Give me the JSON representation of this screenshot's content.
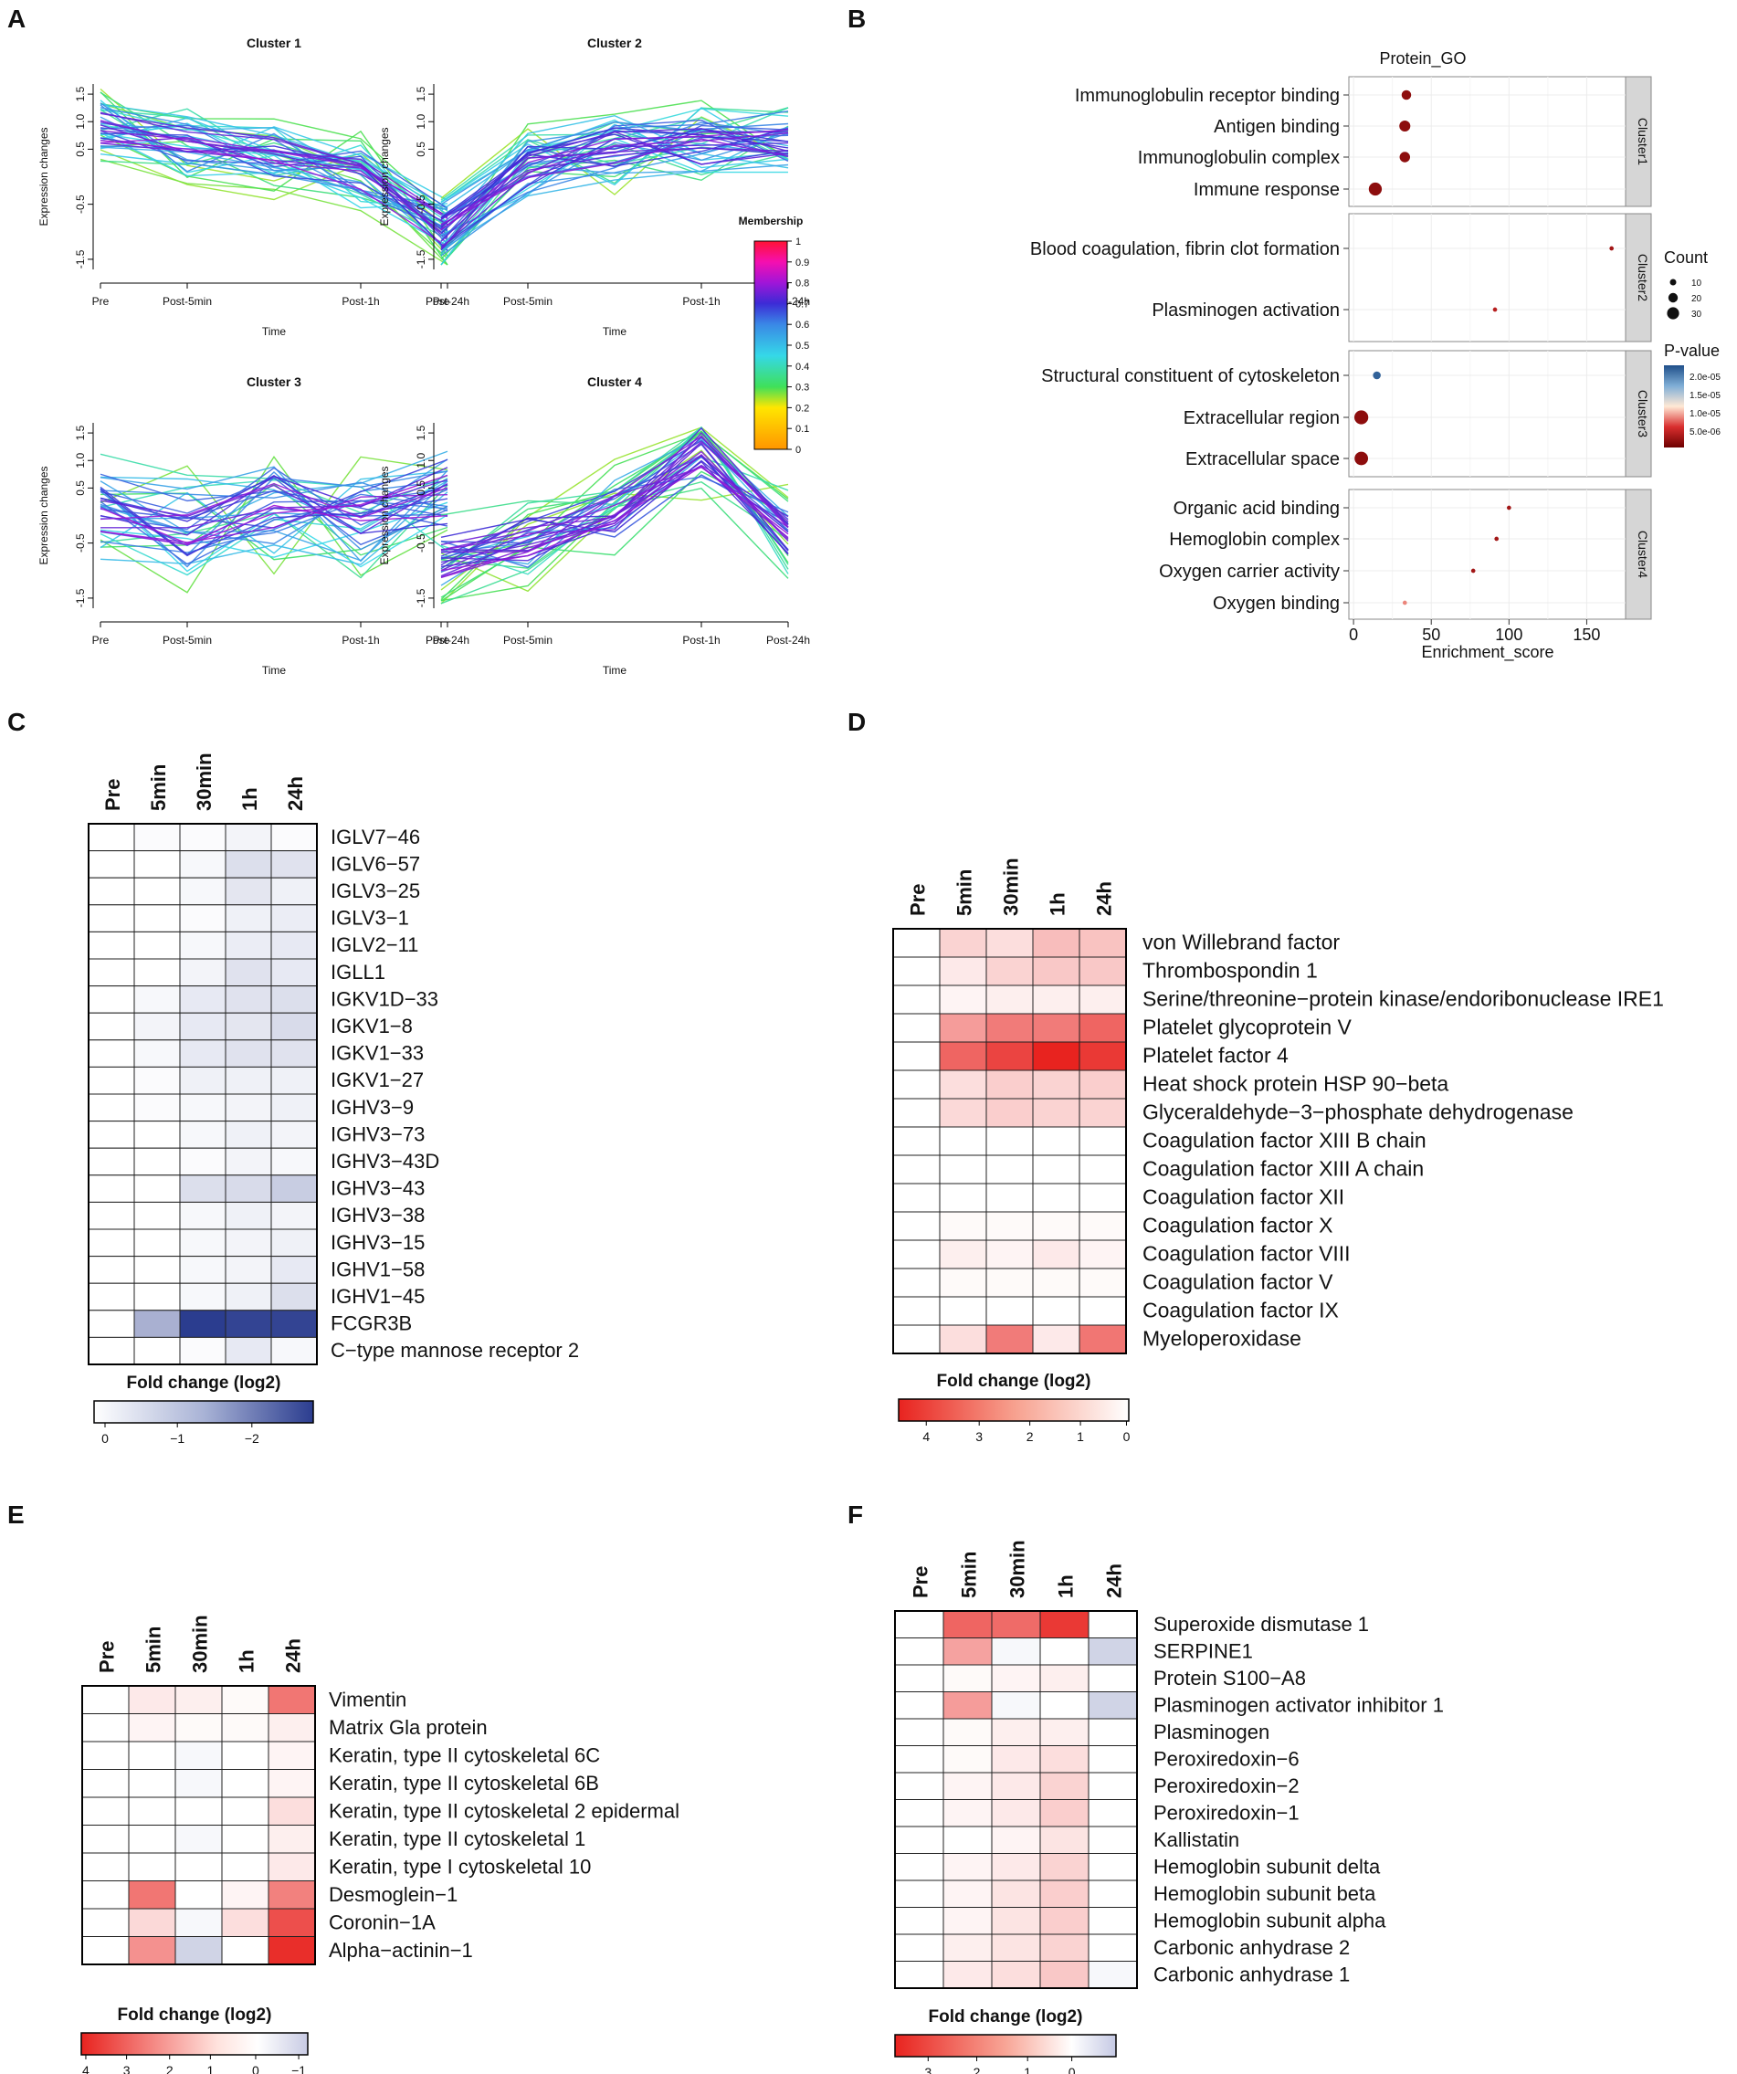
{
  "panels": [
    "A",
    "B",
    "C",
    "D",
    "E",
    "F"
  ],
  "colors": {
    "blue_dark": "#2b3d8f",
    "red_dark": "#e8231f",
    "grid": "#ececec",
    "strip": "#d6d6d6",
    "dot": "#7a0d0d"
  },
  "chart_data": [
    {
      "id": "A",
      "type": "line",
      "xlabel": "Time",
      "ylabel": "Expression changes",
      "x_ticks": [
        "Pre",
        "Post-5min",
        "Post-1h",
        "Post-24h"
      ],
      "y_ticks": [
        "-1.5",
        "-0.5",
        "0.5",
        "1.0",
        "1.5"
      ],
      "ylim": [
        -1.8,
        1.8
      ],
      "colorbar": {
        "title": "Membership",
        "ticks": [
          "1",
          "0.9",
          "0.8",
          "0.7",
          "0.6",
          "0.5",
          "0.4",
          "0.3",
          "0.2",
          "0.1",
          "0"
        ]
      },
      "clusters": [
        {
          "title": "Cluster 1",
          "means": [
            0.9,
            0.55,
            0.4,
            0.05,
            -1.0
          ],
          "spread": 0.45,
          "n": 45
        },
        {
          "title": "Cluster 2",
          "means": [
            -1.0,
            0.2,
            0.5,
            0.6,
            0.7
          ],
          "spread": 0.5,
          "n": 45
        },
        {
          "title": "Cluster 3",
          "means": [
            0.1,
            -0.2,
            0.2,
            -0.1,
            0.4
          ],
          "spread": 0.75,
          "n": 40
        },
        {
          "title": "Cluster 4",
          "means": [
            -0.8,
            -0.4,
            0.1,
            1.2,
            -0.3
          ],
          "spread": 0.55,
          "n": 40
        }
      ]
    },
    {
      "id": "B",
      "type": "scatter",
      "title": "Protein_GO",
      "xlabel": "Enrichment_score",
      "x_ticks": [
        0,
        50,
        100,
        150
      ],
      "xlim": [
        -3,
        175
      ],
      "legend_count": {
        "title": "Count",
        "values": [
          "10",
          "20",
          "30"
        ]
      },
      "legend_p": {
        "title": "P-value",
        "ticks": [
          "2.0e-05",
          "1.5e-05",
          "1.0e-05",
          "5.0e-06"
        ]
      },
      "groups": [
        {
          "strip": "Cluster1",
          "terms": [
            {
              "term": "Immunoglobulin receptor binding",
              "score": 34,
              "count": 15,
              "p": "3e-06"
            },
            {
              "term": "Antigen binding",
              "score": 33,
              "count": 20,
              "p": "3e-06"
            },
            {
              "term": "Immunoglobulin complex",
              "score": 33,
              "count": 18,
              "p": "3e-06"
            },
            {
              "term": "Immune response",
              "score": 14,
              "count": 28,
              "p": "3e-06"
            }
          ]
        },
        {
          "strip": "Cluster2",
          "terms": [
            {
              "term": "Blood coagulation, fibrin clot formation",
              "score": 166,
              "count": 3,
              "p": "4e-06"
            },
            {
              "term": "Plasminogen activation",
              "score": 91,
              "count": 3,
              "p": "5e-06"
            }
          ]
        },
        {
          "strip": "Cluster3",
          "terms": [
            {
              "term": "Structural constituent of cytoskeleton",
              "score": 15,
              "count": 10,
              "p": "2.1e-05"
            },
            {
              "term": "Extracellular region",
              "score": 5,
              "count": 32,
              "p": "3e-06"
            },
            {
              "term": "Extracellular space",
              "score": 5,
              "count": 30,
              "p": "3e-06"
            }
          ]
        },
        {
          "strip": "Cluster4",
          "terms": [
            {
              "term": "Organic acid binding",
              "score": 100,
              "count": 3,
              "p": "4e-06"
            },
            {
              "term": "Hemoglobin complex",
              "score": 92,
              "count": 3,
              "p": "4e-06"
            },
            {
              "term": "Oxygen carrier activity",
              "score": 77,
              "count": 3,
              "p": "4e-06"
            },
            {
              "term": "Oxygen binding",
              "score": 33,
              "count": 3,
              "p": "9e-06"
            }
          ]
        }
      ]
    },
    {
      "id": "C",
      "type": "heatmap",
      "legend_title": "Fold change (log2)",
      "legend_ticks": [
        "0",
        "−1",
        "−2"
      ],
      "columns": [
        "Pre",
        "5min",
        "30min",
        "1h",
        "24h"
      ],
      "rows": [
        {
          "label": "IGLV7−46",
          "values": [
            0,
            -0.05,
            -0.05,
            -0.15,
            -0.05
          ]
        },
        {
          "label": "IGLV6−57",
          "values": [
            0,
            0,
            -0.1,
            -0.45,
            -0.4
          ]
        },
        {
          "label": "IGLV3−25",
          "values": [
            0,
            0,
            -0.1,
            -0.35,
            -0.2
          ]
        },
        {
          "label": "IGLV3−1",
          "values": [
            0,
            0,
            -0.05,
            -0.2,
            -0.25
          ]
        },
        {
          "label": "IGLV2−11",
          "values": [
            0,
            0,
            -0.1,
            -0.25,
            -0.3
          ]
        },
        {
          "label": "IGLL1",
          "values": [
            0,
            0,
            -0.15,
            -0.4,
            -0.3
          ]
        },
        {
          "label": "IGKV1D−33",
          "values": [
            0,
            -0.1,
            -0.3,
            -0.4,
            -0.45
          ]
        },
        {
          "label": "IGKV1−8",
          "values": [
            0,
            -0.15,
            -0.3,
            -0.35,
            -0.5
          ]
        },
        {
          "label": "IGKV1−33",
          "values": [
            0,
            -0.1,
            -0.3,
            -0.4,
            -0.4
          ]
        },
        {
          "label": "IGKV1−27",
          "values": [
            0,
            -0.05,
            -0.2,
            -0.2,
            -0.2
          ]
        },
        {
          "label": "IGHV3−9",
          "values": [
            0,
            -0.05,
            -0.1,
            -0.15,
            -0.2
          ]
        },
        {
          "label": "IGHV3−73",
          "values": [
            0,
            0,
            -0.1,
            -0.2,
            -0.15
          ]
        },
        {
          "label": "IGHV3−43D",
          "values": [
            0,
            0,
            -0.05,
            -0.15,
            -0.1
          ]
        },
        {
          "label": "IGHV3−43",
          "values": [
            0,
            0,
            -0.45,
            -0.5,
            -0.7
          ]
        },
        {
          "label": "IGHV3−38",
          "values": [
            0,
            0,
            -0.1,
            -0.2,
            -0.15
          ]
        },
        {
          "label": "IGHV3−15",
          "values": [
            0,
            0,
            -0.1,
            -0.15,
            -0.2
          ]
        },
        {
          "label": "IGHV1−58",
          "values": [
            0,
            0,
            -0.1,
            -0.15,
            -0.3
          ]
        },
        {
          "label": "IGHV1−45",
          "values": [
            0,
            0,
            -0.1,
            -0.2,
            -0.45
          ]
        },
        {
          "label": "FCGR3B",
          "values": [
            0,
            -1.1,
            -2.7,
            -2.6,
            -2.6
          ]
        },
        {
          "label": "C−type mannose receptor 2",
          "values": [
            0,
            0,
            -0.05,
            -0.3,
            -0.1
          ]
        }
      ]
    },
    {
      "id": "D",
      "type": "heatmap",
      "legend_title": "Fold change (log2)",
      "legend_ticks": [
        "4",
        "3",
        "2",
        "1",
        "0"
      ],
      "columns": [
        "Pre",
        "5min",
        "30min",
        "1h",
        "24h"
      ],
      "rows": [
        {
          "label": "von Willebrand factor",
          "values": [
            0,
            0.8,
            0.6,
            1.2,
            1.1
          ]
        },
        {
          "label": "Thrombospondin 1",
          "values": [
            0,
            0.4,
            0.8,
            1.0,
            1.0
          ]
        },
        {
          "label": "Serine/threonine−protein kinase/endoribonuclease IRE1",
          "values": [
            0,
            0.2,
            0.3,
            0.3,
            0.3
          ]
        },
        {
          "label": "Platelet glycoprotein V",
          "values": [
            0,
            1.8,
            2.4,
            2.4,
            2.8
          ]
        },
        {
          "label": "Platelet factor 4",
          "values": [
            0,
            2.8,
            3.4,
            4.0,
            3.6
          ]
        },
        {
          "label": "Heat shock protein HSP 90−beta",
          "values": [
            0,
            0.6,
            0.9,
            0.8,
            0.9
          ]
        },
        {
          "label": "Glyceraldehyde−3−phosphate dehydrogenase",
          "values": [
            0,
            0.7,
            0.9,
            0.8,
            0.8
          ]
        },
        {
          "label": "Coagulation factor XIII B chain",
          "values": [
            0,
            0,
            0,
            0,
            0
          ]
        },
        {
          "label": "Coagulation factor XIII A chain",
          "values": [
            0,
            0,
            0,
            0,
            0
          ]
        },
        {
          "label": "Coagulation factor XII",
          "values": [
            0,
            0,
            0,
            0,
            0
          ]
        },
        {
          "label": "Coagulation factor X",
          "values": [
            0,
            0.1,
            0.1,
            0.1,
            0.1
          ]
        },
        {
          "label": "Coagulation factor VIII",
          "values": [
            0,
            0.3,
            0.2,
            0.4,
            0.2
          ]
        },
        {
          "label": "Coagulation factor V",
          "values": [
            0,
            0.1,
            0.1,
            0.1,
            0.1
          ]
        },
        {
          "label": "Coagulation factor IX",
          "values": [
            0,
            0,
            0,
            0,
            0
          ]
        },
        {
          "label": "Myeloperoxidase",
          "values": [
            0,
            0.6,
            2.4,
            0.4,
            2.5
          ]
        }
      ]
    },
    {
      "id": "E",
      "type": "heatmap",
      "legend_title": "Fold change (log2)",
      "legend_ticks": [
        "4",
        "3",
        "2",
        "1",
        "0",
        "−1"
      ],
      "columns": [
        "Pre",
        "5min",
        "30min",
        "1h",
        "24h"
      ],
      "rows": [
        {
          "label": "Vimentin",
          "values": [
            0,
            0.4,
            0.3,
            0.1,
            2.5
          ]
        },
        {
          "label": "Matrix Gla protein",
          "values": [
            0,
            0.2,
            0.1,
            0.1,
            0.3
          ]
        },
        {
          "label": "Keratin, type II cytoskeletal 6C",
          "values": [
            0,
            0,
            -0.1,
            0,
            0.2
          ]
        },
        {
          "label": "Keratin, type II cytoskeletal 6B",
          "values": [
            0,
            0,
            -0.1,
            0,
            0.2
          ]
        },
        {
          "label": "Keratin, type II cytoskeletal 2 epidermal",
          "values": [
            0,
            0,
            0,
            0,
            0.6
          ]
        },
        {
          "label": "Keratin, type II cytoskeletal 1",
          "values": [
            0,
            0,
            -0.1,
            0,
            0.3
          ]
        },
        {
          "label": "Keratin, type I cytoskeletal 10",
          "values": [
            0,
            0,
            0,
            0,
            0.4
          ]
        },
        {
          "label": "Desmoglein−1",
          "values": [
            0,
            2.5,
            0,
            0.2,
            2.3
          ]
        },
        {
          "label": "Coronin−1A",
          "values": [
            0,
            0.7,
            -0.1,
            0.6,
            3.2
          ]
        },
        {
          "label": "Alpha−actinin−1",
          "values": [
            0,
            2.0,
            -0.6,
            0,
            3.8
          ]
        }
      ]
    },
    {
      "id": "F",
      "type": "heatmap",
      "legend_title": "Fold change (log2)",
      "legend_ticks": [
        "3",
        "2",
        "1",
        "0"
      ],
      "columns": [
        "Pre",
        "5min",
        "30min",
        "1h",
        "24h"
      ],
      "rows": [
        {
          "label": "Superoxide dismutase 1",
          "values": [
            0,
            2.8,
            2.7,
            3.6,
            0
          ]
        },
        {
          "label": "SERPINE1",
          "values": [
            0,
            1.7,
            -0.1,
            0,
            -0.6
          ]
        },
        {
          "label": "Protein S100−A8",
          "values": [
            0,
            0.1,
            0.2,
            0.3,
            0
          ]
        },
        {
          "label": "Plasminogen activator inhibitor 1",
          "values": [
            0,
            1.8,
            -0.1,
            0,
            -0.6
          ]
        },
        {
          "label": "Plasminogen",
          "values": [
            0,
            0.1,
            0.3,
            0.3,
            0
          ]
        },
        {
          "label": "Peroxiredoxin−6",
          "values": [
            0,
            0.1,
            0.4,
            0.6,
            0
          ]
        },
        {
          "label": "Peroxiredoxin−2",
          "values": [
            0,
            0.2,
            0.4,
            0.8,
            0
          ]
        },
        {
          "label": "Peroxiredoxin−1",
          "values": [
            0,
            0.2,
            0.4,
            0.9,
            0
          ]
        },
        {
          "label": "Kallistatin",
          "values": [
            0,
            0,
            0.2,
            0.5,
            0
          ]
        },
        {
          "label": "Hemoglobin subunit delta",
          "values": [
            0,
            0.2,
            0.4,
            0.8,
            0
          ]
        },
        {
          "label": "Hemoglobin subunit beta",
          "values": [
            0,
            0.2,
            0.5,
            0.9,
            0
          ]
        },
        {
          "label": "Hemoglobin subunit alpha",
          "values": [
            0,
            0.2,
            0.5,
            0.9,
            0
          ]
        },
        {
          "label": "Carbonic anhydrase 2",
          "values": [
            0,
            0.3,
            0.5,
            0.8,
            0
          ]
        },
        {
          "label": "Carbonic anhydrase 1",
          "values": [
            0,
            0.4,
            0.6,
            1.0,
            -0.1
          ]
        }
      ]
    }
  ]
}
